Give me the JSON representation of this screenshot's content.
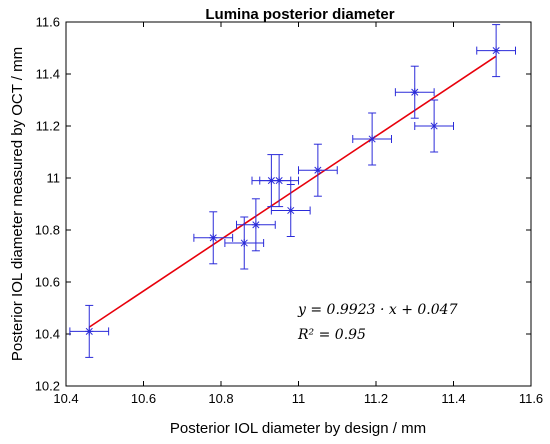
{
  "chart_data": {
    "type": "scatter",
    "title": "Lumina posterior diameter",
    "xlabel": "Posterior IOL diameter by design / mm",
    "ylabel": "Posterior IOL diameter measured by OCT / mm",
    "xlim": [
      10.4,
      11.6
    ],
    "ylim": [
      10.2,
      11.6
    ],
    "x_ticks": [
      "10.4",
      "10.6",
      "10.8",
      "11",
      "11.2",
      "11.4",
      "11.6"
    ],
    "y_ticks": [
      "10.2",
      "10.4",
      "10.6",
      "10.8",
      "11",
      "11.2",
      "11.4",
      "11.6"
    ],
    "grid": false,
    "points": [
      {
        "x": 10.46,
        "y": 10.41,
        "xerr": 0.05,
        "yerr": 0.1
      },
      {
        "x": 10.78,
        "y": 10.77,
        "xerr": 0.05,
        "yerr": 0.1
      },
      {
        "x": 10.86,
        "y": 10.75,
        "xerr": 0.05,
        "yerr": 0.1
      },
      {
        "x": 10.89,
        "y": 10.82,
        "xerr": 0.05,
        "yerr": 0.1
      },
      {
        "x": 10.93,
        "y": 10.99,
        "xerr": 0.05,
        "yerr": 0.1
      },
      {
        "x": 10.95,
        "y": 10.99,
        "xerr": 0.05,
        "yerr": 0.1
      },
      {
        "x": 10.98,
        "y": 10.875,
        "xerr": 0.05,
        "yerr": 0.1
      },
      {
        "x": 11.05,
        "y": 11.03,
        "xerr": 0.05,
        "yerr": 0.1
      },
      {
        "x": 11.19,
        "y": 11.15,
        "xerr": 0.05,
        "yerr": 0.1
      },
      {
        "x": 11.3,
        "y": 11.33,
        "xerr": 0.05,
        "yerr": 0.1
      },
      {
        "x": 11.35,
        "y": 11.2,
        "xerr": 0.05,
        "yerr": 0.1
      },
      {
        "x": 11.51,
        "y": 11.49,
        "xerr": 0.05,
        "yerr": 0.1
      }
    ],
    "fit_line": {
      "slope": 0.9923,
      "intercept": 0.047,
      "x_range": [
        10.46,
        11.51
      ]
    },
    "annotations": {
      "equation": "y = 0.9923 · x + 0.047",
      "r_squared": "R² = 0.95"
    },
    "colors": {
      "points": "#2b2bd9",
      "error_bars": "#2b2bd9",
      "fit_line": "#e8000b",
      "axes": "#000000"
    }
  }
}
